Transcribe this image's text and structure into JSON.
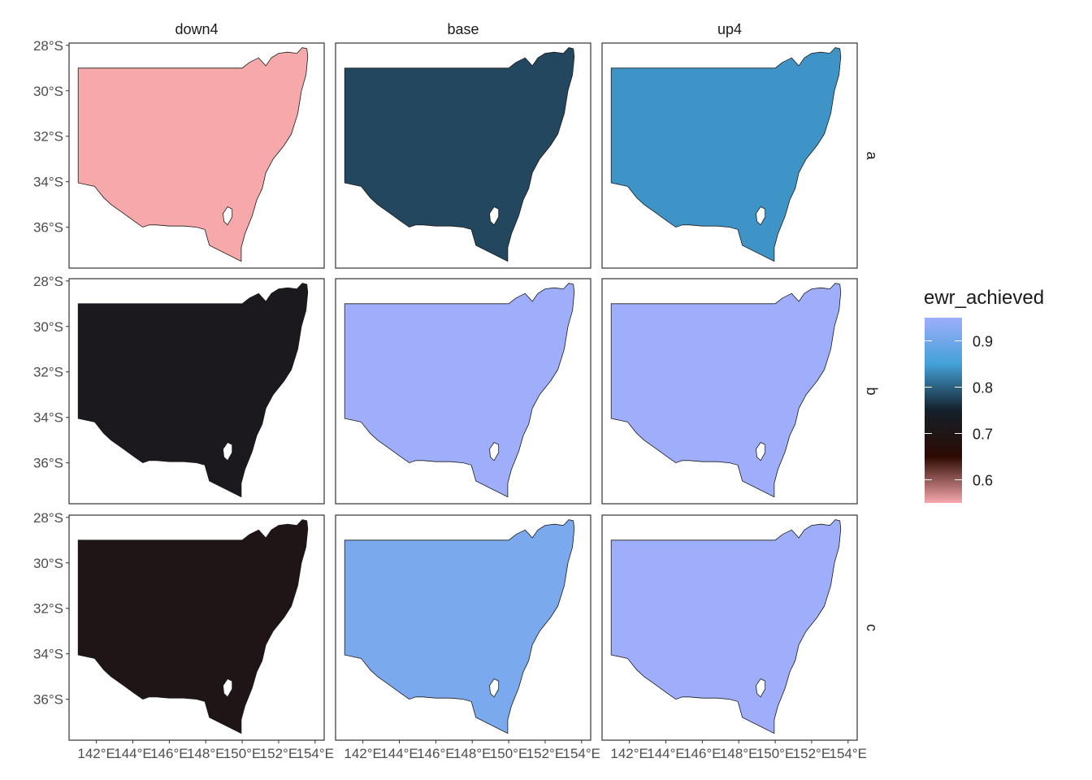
{
  "chart_data": {
    "type": "choropleth-facet",
    "columns": [
      "down4",
      "base",
      "up4"
    ],
    "rows": [
      "a",
      "b",
      "c"
    ],
    "fill_variable": "ewr_achieved",
    "values": {
      "a": {
        "down4": 0.55,
        "base": 0.78,
        "up4": 0.84
      },
      "b": {
        "down4": 0.72,
        "base": 0.95,
        "up4": 0.95
      },
      "c": {
        "down4": 0.7,
        "base": 0.91,
        "up4": 0.95
      }
    },
    "x_ticks": [
      {
        "value": 142,
        "label": "142°E"
      },
      {
        "value": 144,
        "label": "144°E"
      },
      {
        "value": 146,
        "label": "146°E"
      },
      {
        "value": 148,
        "label": "148°E"
      },
      {
        "value": 150,
        "label": "150°E"
      },
      {
        "value": 152,
        "label": "152°E"
      },
      {
        "value": 154,
        "label": "154°E"
      }
    ],
    "y_ticks": [
      {
        "value": -28,
        "label": "28°S"
      },
      {
        "value": -30,
        "label": "30°S"
      },
      {
        "value": -32,
        "label": "32°S"
      },
      {
        "value": -34,
        "label": "34°S"
      },
      {
        "value": -36,
        "label": "36°S"
      }
    ],
    "xlim": [
      140.5,
      154.5
    ],
    "ylim": [
      -37.8,
      -27.9
    ],
    "legend": {
      "title": "ewr_achieved",
      "position": "right",
      "ticks": [
        0.9,
        0.8,
        0.7,
        0.6
      ],
      "range": [
        0.55,
        0.95
      ],
      "colors": [
        "#f7a8ab",
        "#2c0a02",
        "#14202a",
        "#43a1d8",
        "#9eaefb"
      ]
    },
    "grid": false
  }
}
